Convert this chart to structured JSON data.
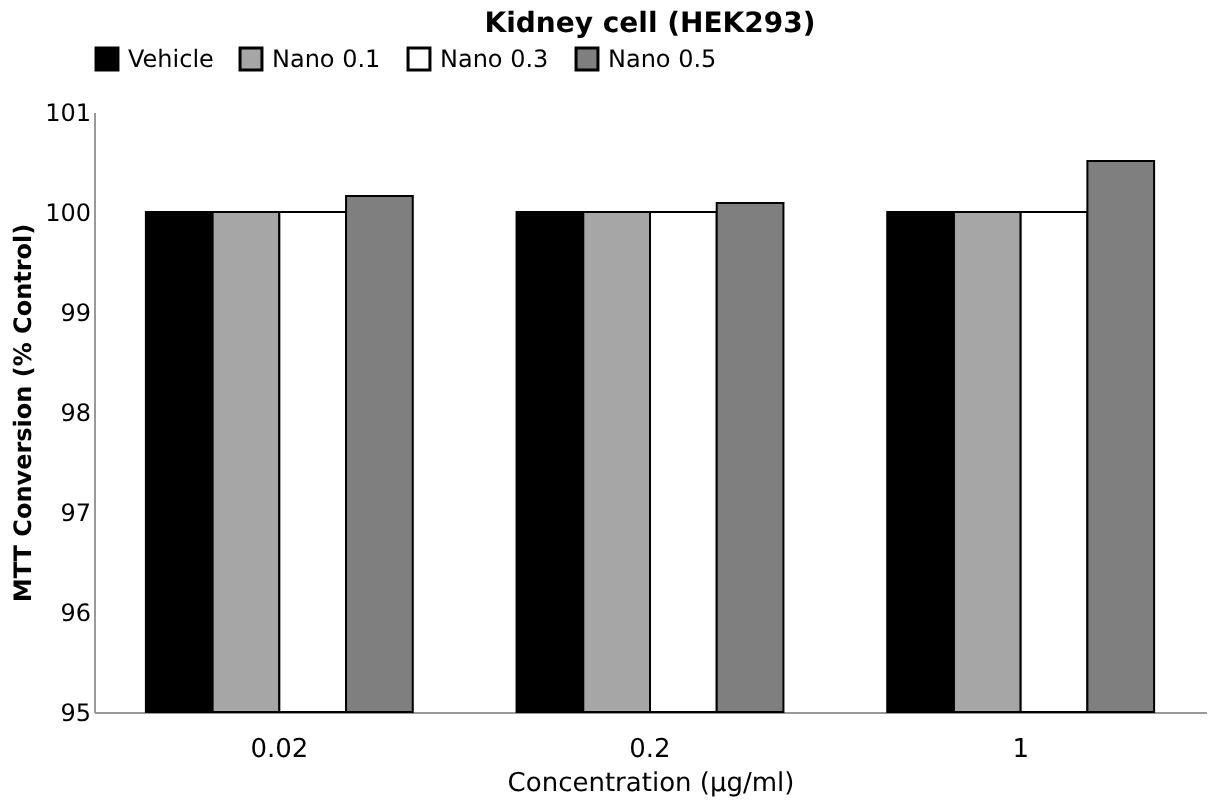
{
  "chart_data": {
    "type": "bar",
    "title": "Kidney cell  (HEK293)",
    "xlabel": "Concentration (µg/ml)",
    "ylabel": "MTT Conversion (% Control)",
    "categories": [
      "0.02",
      "0.2",
      "1"
    ],
    "series": [
      {
        "name": "Vehicle",
        "color": "#000000",
        "values": [
          100,
          100,
          100
        ]
      },
      {
        "name": "Nano 0.1",
        "color": "#a6a6a6",
        "values": [
          100,
          100,
          100
        ]
      },
      {
        "name": "Nano 0.3",
        "color": "#ffffff",
        "values": [
          100,
          100,
          100
        ]
      },
      {
        "name": "Nano 0.5",
        "color": "#7f7f7f",
        "values": [
          100.16,
          100.09,
          100.51
        ]
      }
    ],
    "ylim": [
      95,
      101
    ],
    "yticks": [
      95,
      96,
      97,
      98,
      99,
      100,
      101
    ],
    "grid": false,
    "legend": "top"
  }
}
